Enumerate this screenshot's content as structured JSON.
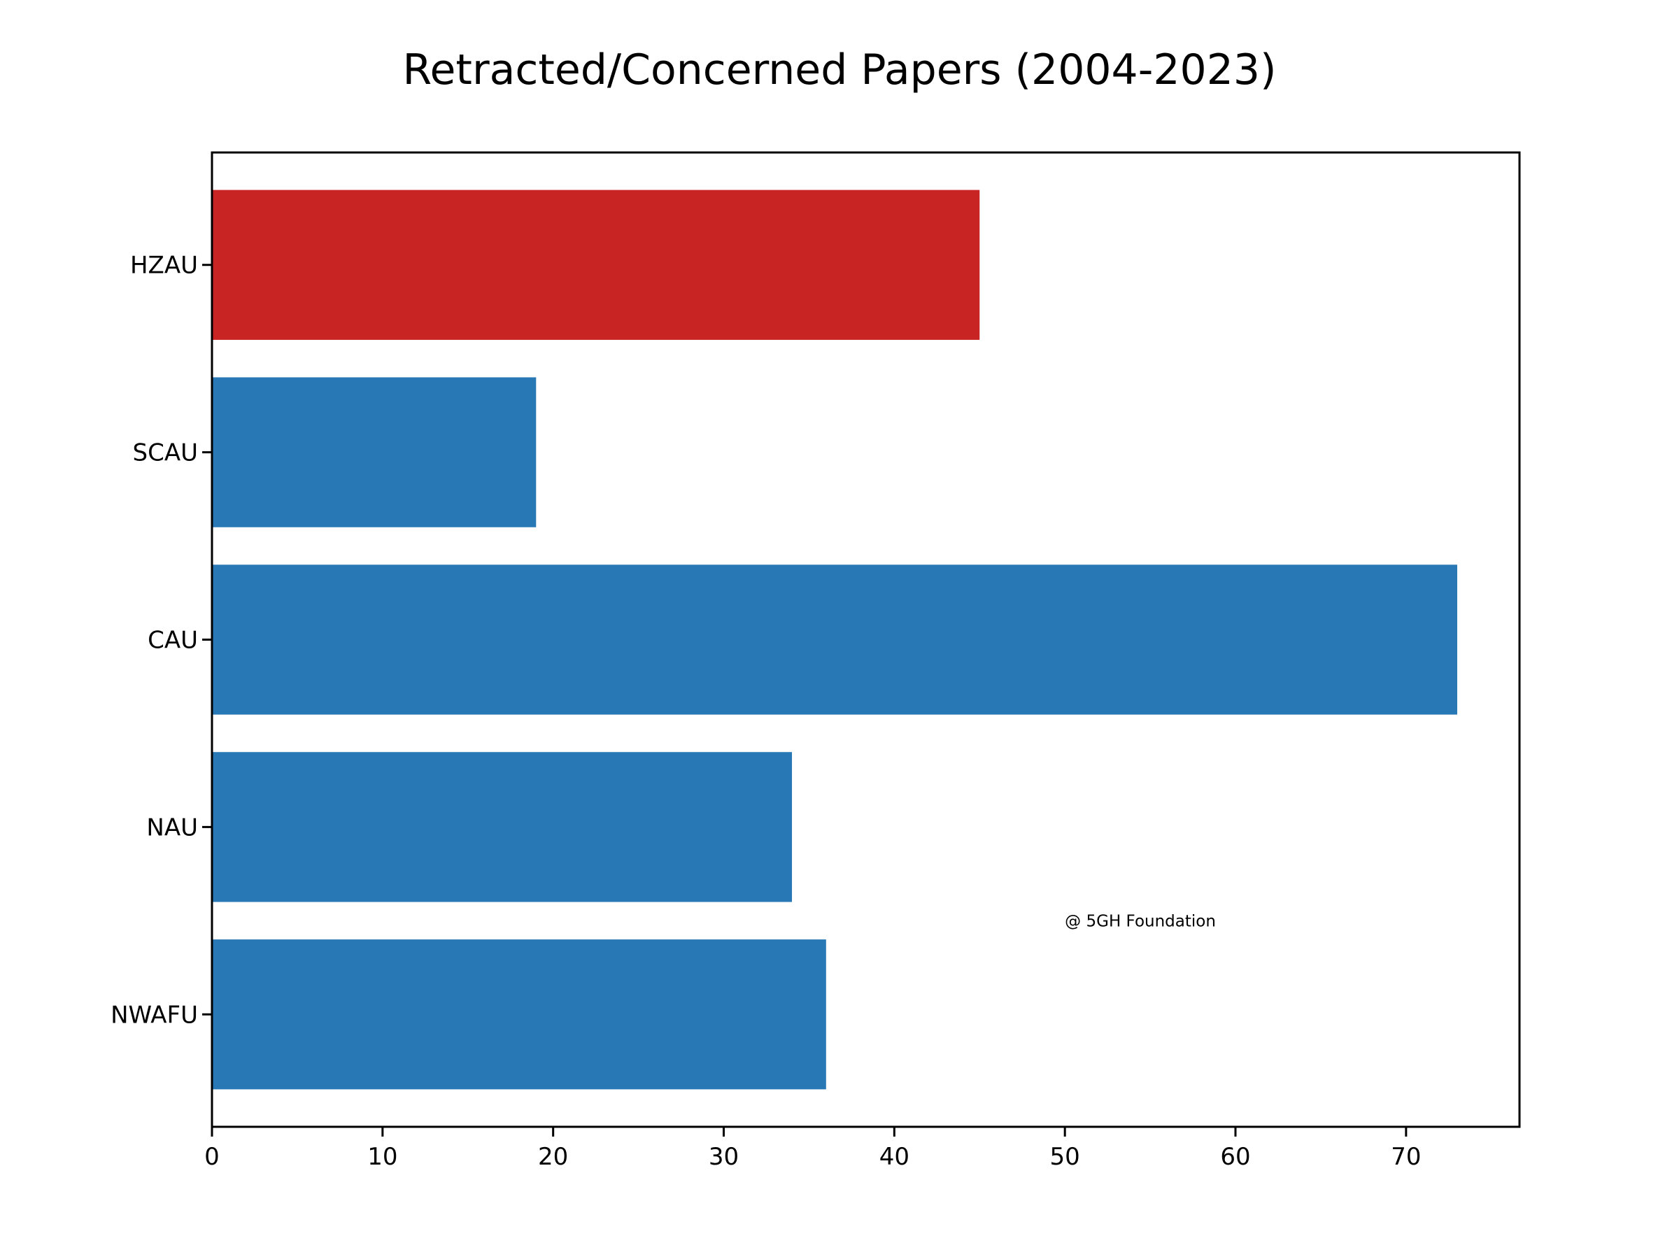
{
  "chart_data": {
    "type": "bar",
    "orientation": "horizontal",
    "title": "Retracted/Concerned Papers (2004-2023)",
    "xlabel": "",
    "ylabel": "",
    "categories": [
      "HZAU",
      "SCAU",
      "CAU",
      "NAU",
      "NWAFU"
    ],
    "values": [
      45,
      19,
      73,
      34,
      36
    ],
    "bar_colors": [
      "#c82423",
      "#2878b5",
      "#2878b5",
      "#2878b5",
      "#2878b5"
    ],
    "xlim": [
      0,
      76.65
    ],
    "xticks": [
      0,
      10,
      20,
      30,
      40,
      50,
      60,
      70
    ],
    "grid": false,
    "annotation": {
      "text": "@ 5GH Foundation",
      "x": 50,
      "y": "NWAFU-NAU"
    }
  }
}
